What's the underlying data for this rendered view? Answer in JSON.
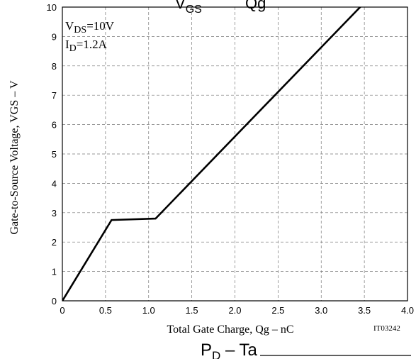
{
  "chart_data": {
    "type": "line",
    "title_fragment_left": "V",
    "title_fragment_left_sub": "GS",
    "title_fragment_right": "Qg",
    "xlabel": "Total Gate Charge, Qg  –  nC",
    "ylabel": "Gate-to-Source Voltage, VGS  –  V",
    "xlim": [
      0,
      4.0
    ],
    "ylim": [
      0,
      10
    ],
    "x_ticks": [
      "0",
      "0.5",
      "1.0",
      "1.5",
      "2.0",
      "2.5",
      "3.0",
      "3.5",
      "4.0"
    ],
    "y_ticks": [
      "0",
      "1",
      "2",
      "3",
      "4",
      "5",
      "6",
      "7",
      "8",
      "9",
      "10"
    ],
    "grid": true,
    "annotation": {
      "line1_main": "V",
      "line1_sub": "DS",
      "line1_value": "=10V",
      "line2_main": "I",
      "line2_sub": "D",
      "line2_value": "=1.2A"
    },
    "code": "IT03242",
    "series": [
      {
        "x": [
          0,
          0.57,
          1.08,
          3.55
        ],
        "y": [
          0,
          2.75,
          2.8,
          10.3
        ]
      }
    ]
  },
  "bottom_title": {
    "main": "P",
    "sub": "D",
    "rest": " – Ta"
  }
}
